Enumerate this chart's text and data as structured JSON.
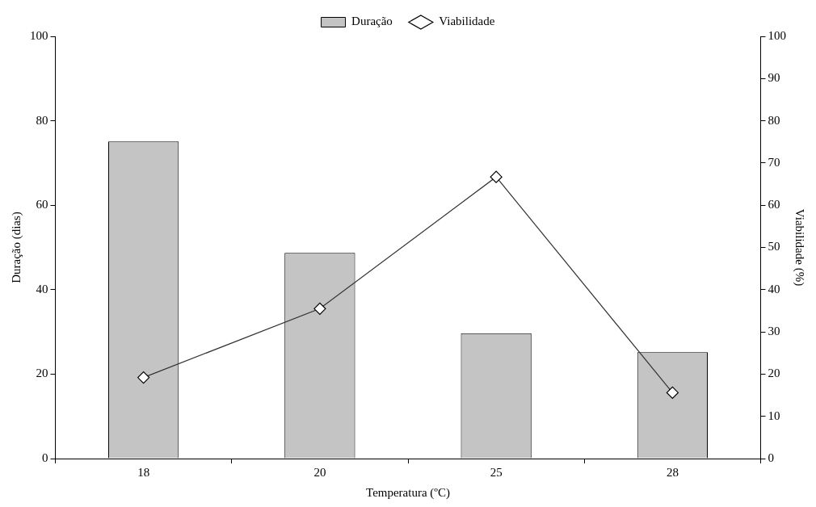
{
  "chart_data": {
    "type": "bar",
    "xlabel": "Temperatura (ºC)",
    "ylabel": "Duração (dias)",
    "y2label": "Viabilidade (%)",
    "categories": [
      "18",
      "20",
      "25",
      "28"
    ],
    "series": [
      {
        "name": "Duração",
        "color": "#c4c4c4",
        "values": [
          75.1,
          48.7,
          29.7,
          25.2
        ]
      },
      {
        "name": "Viabilidade",
        "type": "line",
        "axis": "y2",
        "color": "#333333",
        "values": [
          19.2,
          35.5,
          66.7,
          15.6
        ]
      }
    ],
    "ylim": [
      0,
      100
    ],
    "yticks": [
      0,
      20,
      40,
      60,
      80,
      100
    ],
    "y2lim": [
      0,
      100
    ],
    "y2ticks": [
      0,
      10,
      20,
      30,
      40,
      50,
      60,
      70,
      80,
      90,
      100
    ],
    "legend": "top",
    "marker": "diamond"
  }
}
